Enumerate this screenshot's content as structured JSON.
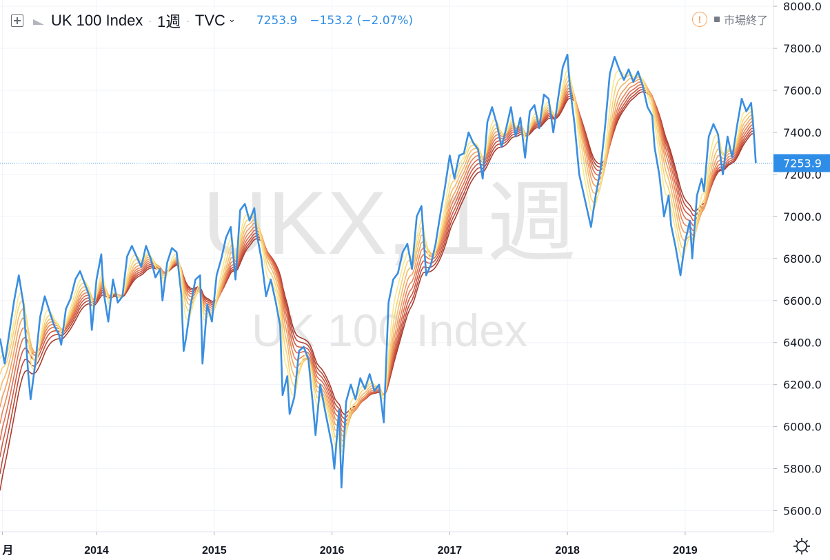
{
  "header": {
    "symbol_name": "UK 100 Index",
    "interval": "1週",
    "exchange": "TVC",
    "last_price": "7253.9",
    "change": "−153.2 (−2.07%)"
  },
  "status": {
    "market_closed": "市場終了"
  },
  "watermark": {
    "line1": "UKX, 1週",
    "line2": "UK 100 Index"
  },
  "icons": {
    "add": "plus-square-icon",
    "flag": "flag-icon",
    "dropdown": "chevron-down-icon",
    "warning": "exclamation-circle-icon",
    "settings": "gear-icon"
  },
  "colors": {
    "price_line": "#3a8ee0",
    "last_price_label_bg": "#2e8de6",
    "ribbon": [
      "#f7e98b",
      "#f6d27a",
      "#f4ba6c",
      "#f0a05f",
      "#e98656",
      "#de6e4e",
      "#cf5844",
      "#bc4a39",
      "#a83c2f"
    ]
  },
  "chart_data": {
    "type": "line",
    "title": "UK 100 Index",
    "xlabel": "",
    "ylabel": "",
    "ylim": [
      5500,
      8030
    ],
    "y_ticks": [
      5600,
      5800,
      6000,
      6200,
      6400,
      6600,
      6800,
      7000,
      7200,
      7400,
      7600,
      7800,
      8000
    ],
    "y_tick_labels": [
      "5600.0",
      "5800.0",
      "6000.0",
      "6200.0",
      "6400.0",
      "6600.0",
      "6800.0",
      "7000.0",
      "7200.0",
      "7400.0",
      "7600.0",
      "7800.0",
      "8000.0"
    ],
    "x_range": [
      2013.18,
      2019.75
    ],
    "x_ticks": [
      {
        "label": "月",
        "x": 2013.2
      },
      {
        "label": "2014",
        "x": 2014.0
      },
      {
        "label": "2015",
        "x": 2015.0
      },
      {
        "label": "2016",
        "x": 2016.0
      },
      {
        "label": "2017",
        "x": 2017.0
      },
      {
        "label": "2018",
        "x": 2018.0
      },
      {
        "label": "2019",
        "x": 2019.0
      }
    ],
    "grid": true,
    "last_value": 7253.9,
    "last_value_label": "7253.9",
    "series": [
      {
        "values": [
          [
            2013.18,
            6420
          ],
          [
            2013.22,
            6300
          ],
          [
            2013.26,
            6450
          ],
          [
            2013.3,
            6600
          ],
          [
            2013.34,
            6720
          ],
          [
            2013.38,
            6580
          ],
          [
            2013.42,
            6250
          ],
          [
            2013.44,
            6130
          ],
          [
            2013.48,
            6300
          ],
          [
            2013.52,
            6520
          ],
          [
            2013.56,
            6620
          ],
          [
            2013.6,
            6550
          ],
          [
            2013.64,
            6480
          ],
          [
            2013.68,
            6440
          ],
          [
            2013.7,
            6390
          ],
          [
            2013.74,
            6560
          ],
          [
            2013.78,
            6610
          ],
          [
            2013.82,
            6700
          ],
          [
            2013.86,
            6740
          ],
          [
            2013.9,
            6680
          ],
          [
            2013.94,
            6620
          ],
          [
            2013.96,
            6460
          ],
          [
            2014.0,
            6700
          ],
          [
            2014.04,
            6820
          ],
          [
            2014.06,
            6640
          ],
          [
            2014.1,
            6500
          ],
          [
            2014.14,
            6700
          ],
          [
            2014.18,
            6590
          ],
          [
            2014.22,
            6620
          ],
          [
            2014.26,
            6810
          ],
          [
            2014.3,
            6860
          ],
          [
            2014.34,
            6810
          ],
          [
            2014.38,
            6760
          ],
          [
            2014.42,
            6860
          ],
          [
            2014.46,
            6800
          ],
          [
            2014.5,
            6710
          ],
          [
            2014.54,
            6750
          ],
          [
            2014.56,
            6600
          ],
          [
            2014.6,
            6780
          ],
          [
            2014.64,
            6850
          ],
          [
            2014.68,
            6830
          ],
          [
            2014.72,
            6630
          ],
          [
            2014.74,
            6360
          ],
          [
            2014.76,
            6420
          ],
          [
            2014.8,
            6580
          ],
          [
            2014.84,
            6700
          ],
          [
            2014.88,
            6720
          ],
          [
            2014.9,
            6300
          ],
          [
            2014.94,
            6580
          ],
          [
            2014.98,
            6500
          ],
          [
            2015.02,
            6720
          ],
          [
            2015.06,
            6800
          ],
          [
            2015.1,
            6900
          ],
          [
            2015.14,
            6950
          ],
          [
            2015.18,
            6700
          ],
          [
            2015.22,
            7030
          ],
          [
            2015.26,
            7060
          ],
          [
            2015.3,
            6980
          ],
          [
            2015.34,
            7040
          ],
          [
            2015.36,
            6920
          ],
          [
            2015.4,
            6800
          ],
          [
            2015.44,
            6620
          ],
          [
            2015.48,
            6700
          ],
          [
            2015.52,
            6600
          ],
          [
            2015.56,
            6480
          ],
          [
            2015.58,
            6150
          ],
          [
            2015.62,
            6240
          ],
          [
            2015.64,
            6060
          ],
          [
            2015.68,
            6140
          ],
          [
            2015.72,
            6360
          ],
          [
            2015.76,
            6380
          ],
          [
            2015.8,
            6320
          ],
          [
            2015.84,
            6090
          ],
          [
            2015.86,
            5960
          ],
          [
            2015.9,
            6200
          ],
          [
            2015.94,
            6080
          ],
          [
            2016.0,
            5910
          ],
          [
            2016.02,
            5800
          ],
          [
            2016.06,
            6080
          ],
          [
            2016.08,
            5710
          ],
          [
            2016.12,
            6120
          ],
          [
            2016.16,
            6200
          ],
          [
            2016.2,
            6130
          ],
          [
            2016.24,
            6230
          ],
          [
            2016.28,
            6180
          ],
          [
            2016.32,
            6250
          ],
          [
            2016.36,
            6170
          ],
          [
            2016.4,
            6200
          ],
          [
            2016.44,
            6020
          ],
          [
            2016.48,
            6590
          ],
          [
            2016.52,
            6700
          ],
          [
            2016.56,
            6730
          ],
          [
            2016.6,
            6830
          ],
          [
            2016.64,
            6870
          ],
          [
            2016.68,
            6750
          ],
          [
            2016.72,
            7000
          ],
          [
            2016.76,
            7050
          ],
          [
            2016.8,
            6720
          ],
          [
            2016.84,
            6770
          ],
          [
            2016.88,
            6870
          ],
          [
            2016.92,
            7010
          ],
          [
            2016.96,
            7140
          ],
          [
            2017.0,
            7290
          ],
          [
            2017.04,
            7180
          ],
          [
            2017.08,
            7290
          ],
          [
            2017.12,
            7300
          ],
          [
            2017.16,
            7400
          ],
          [
            2017.2,
            7350
          ],
          [
            2017.24,
            7320
          ],
          [
            2017.28,
            7180
          ],
          [
            2017.32,
            7450
          ],
          [
            2017.36,
            7520
          ],
          [
            2017.4,
            7440
          ],
          [
            2017.44,
            7330
          ],
          [
            2017.48,
            7420
          ],
          [
            2017.52,
            7520
          ],
          [
            2017.56,
            7380
          ],
          [
            2017.6,
            7470
          ],
          [
            2017.64,
            7280
          ],
          [
            2017.68,
            7500
          ],
          [
            2017.72,
            7530
          ],
          [
            2017.76,
            7420
          ],
          [
            2017.8,
            7580
          ],
          [
            2017.84,
            7560
          ],
          [
            2017.88,
            7400
          ],
          [
            2017.92,
            7560
          ],
          [
            2017.96,
            7710
          ],
          [
            2018.0,
            7770
          ],
          [
            2018.02,
            7620
          ],
          [
            2018.06,
            7440
          ],
          [
            2018.1,
            7200
          ],
          [
            2018.14,
            7100
          ],
          [
            2018.18,
            7000
          ],
          [
            2018.2,
            6950
          ],
          [
            2018.24,
            7100
          ],
          [
            2018.28,
            7220
          ],
          [
            2018.32,
            7430
          ],
          [
            2018.36,
            7680
          ],
          [
            2018.4,
            7760
          ],
          [
            2018.44,
            7700
          ],
          [
            2018.48,
            7650
          ],
          [
            2018.52,
            7700
          ],
          [
            2018.56,
            7640
          ],
          [
            2018.6,
            7690
          ],
          [
            2018.64,
            7620
          ],
          [
            2018.68,
            7520
          ],
          [
            2018.72,
            7480
          ],
          [
            2018.74,
            7330
          ],
          [
            2018.78,
            7200
          ],
          [
            2018.82,
            7000
          ],
          [
            2018.86,
            7100
          ],
          [
            2018.88,
            6960
          ],
          [
            2018.92,
            6850
          ],
          [
            2018.96,
            6720
          ],
          [
            2019.0,
            6880
          ],
          [
            2019.04,
            6980
          ],
          [
            2019.06,
            6800
          ],
          [
            2019.1,
            7100
          ],
          [
            2019.14,
            7180
          ],
          [
            2019.16,
            7120
          ],
          [
            2019.2,
            7380
          ],
          [
            2019.24,
            7440
          ],
          [
            2019.28,
            7390
          ],
          [
            2019.3,
            7280
          ],
          [
            2019.32,
            7200
          ],
          [
            2019.36,
            7380
          ],
          [
            2019.4,
            7280
          ],
          [
            2019.44,
            7430
          ],
          [
            2019.48,
            7560
          ],
          [
            2019.52,
            7500
          ],
          [
            2019.56,
            7540
          ],
          [
            2019.58,
            7420
          ],
          [
            2019.6,
            7254
          ]
        ]
      }
    ],
    "ribbon_windows_weeks": [
      4,
      6,
      8,
      10,
      12,
      14,
      16,
      18,
      20
    ]
  }
}
